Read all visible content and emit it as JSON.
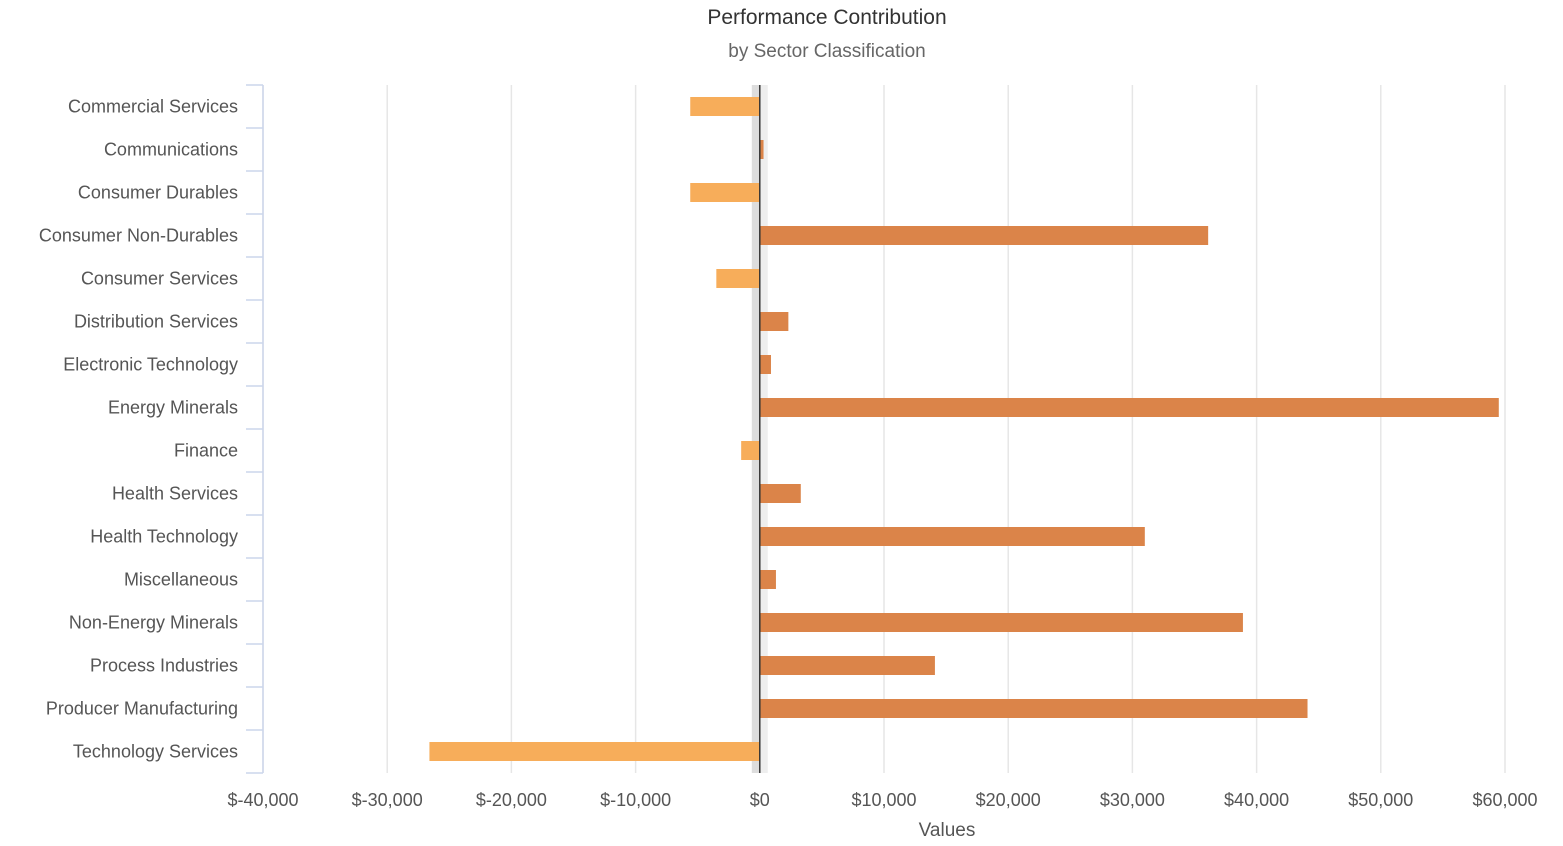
{
  "chart_data": {
    "type": "bar",
    "orientation": "horizontal",
    "title": "Performance Contribution",
    "subtitle": "by Sector Classification",
    "xlabel": "Values",
    "ylabel": "",
    "xlim": [
      -40000,
      60000
    ],
    "x_ticks": [
      -40000,
      -30000,
      -20000,
      -10000,
      0,
      10000,
      20000,
      30000,
      40000,
      50000,
      60000
    ],
    "x_tick_labels": [
      "$-40,000",
      "$-30,000",
      "$-20,000",
      "$-10,000",
      "$0",
      "$10,000",
      "$20,000",
      "$30,000",
      "$40,000",
      "$50,000",
      "$60,000"
    ],
    "grid": true,
    "legend": "none",
    "colors": {
      "positive": "#DB8449",
      "negative": "#F7AD5A",
      "zero_line": "#333333",
      "zero_band": "#dddddd",
      "grid": "#e6e6e6",
      "axis": "#ccd6eb"
    },
    "categories": [
      "Commercial Services",
      "Communications",
      "Consumer Durables",
      "Consumer Non-Durables",
      "Consumer Services",
      "Distribution Services",
      "Electronic Technology",
      "Energy Minerals",
      "Finance",
      "Health Services",
      "Health Technology",
      "Miscellaneous",
      "Non-Energy Minerals",
      "Process Industries",
      "Producer Manufacturing",
      "Technology Services"
    ],
    "values": [
      -5600,
      300,
      -5600,
      36100,
      -3500,
      2300,
      900,
      59500,
      -1500,
      3300,
      31000,
      1300,
      38900,
      14100,
      44100,
      -26600
    ]
  }
}
